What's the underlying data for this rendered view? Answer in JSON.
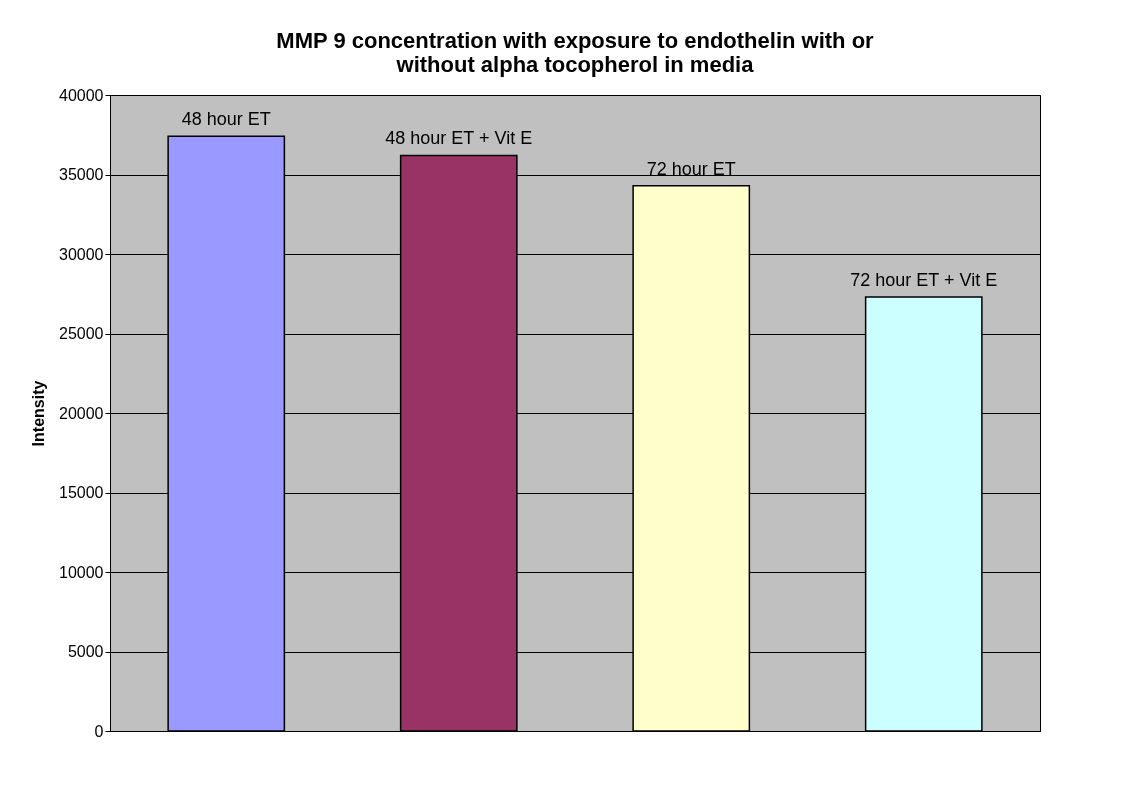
{
  "chart_data": {
    "type": "bar",
    "title": [
      "MMP 9 concentration with exposure to endothelin with or",
      "without alpha tocopherol in media"
    ],
    "ylabel": "Intensity",
    "categories": [
      "48 hour ET",
      "48 hour ET + Vit E",
      "72 hour ET",
      "72 hour ET + Vit E"
    ],
    "values": [
      37400,
      36200,
      34300,
      27300
    ],
    "colors": [
      "#9999ff",
      "#993366",
      "#ffffcc",
      "#ccffff"
    ],
    "ylim": [
      0,
      40000
    ],
    "yticks": [
      0,
      5000,
      10000,
      15000,
      20000,
      25000,
      30000,
      35000,
      40000
    ],
    "grid": "y"
  }
}
